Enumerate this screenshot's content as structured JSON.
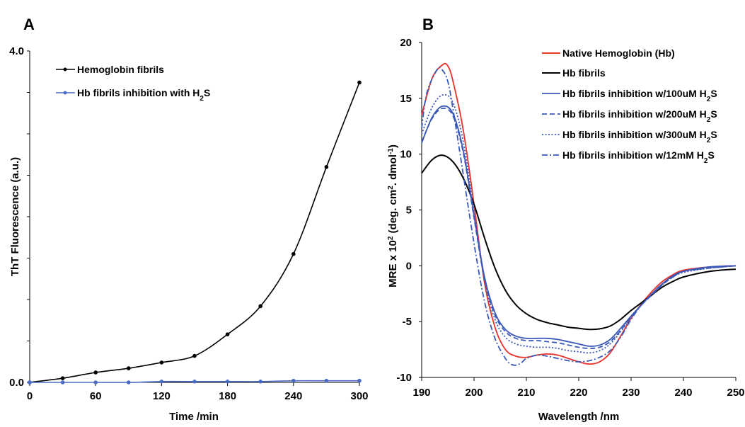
{
  "chart_data": [
    {
      "panel": "A",
      "type": "line",
      "xlabel": "Time /min",
      "ylabel": "ThT Fluorescence (a.u.)",
      "xlim": [
        0,
        300
      ],
      "ylim": [
        0,
        4.0
      ],
      "xticks": [
        "0",
        "60",
        "120",
        "180",
        "240",
        "300"
      ],
      "yticks": [
        "0.0",
        "4.0"
      ],
      "legend_position": "top-left",
      "series": [
        {
          "name": "Hemoglobin fibrils",
          "color": "#000000",
          "x": [
            0,
            30,
            60,
            90,
            120,
            150,
            180,
            210,
            240,
            270,
            300
          ],
          "y": [
            0.0,
            0.05,
            0.12,
            0.17,
            0.24,
            0.32,
            0.58,
            0.92,
            1.55,
            2.6,
            3.62
          ]
        },
        {
          "name": "Hb fibrils inhibition with H2S",
          "color": "#4a6cc4",
          "x": [
            0,
            30,
            60,
            90,
            120,
            150,
            180,
            210,
            240,
            270,
            300
          ],
          "y": [
            0.0,
            0.0,
            0.0,
            0.0,
            0.01,
            0.01,
            0.01,
            0.01,
            0.02,
            0.02,
            0.02
          ]
        }
      ]
    },
    {
      "panel": "B",
      "type": "line",
      "xlabel": "Wavelength /nm",
      "ylabel": "MRE x 10² (deg. cm². dmol⁻¹)",
      "xlim": [
        190,
        250
      ],
      "ylim": [
        -10,
        20
      ],
      "xticks": [
        "190",
        "200",
        "210",
        "220",
        "230",
        "240",
        "250"
      ],
      "yticks": [
        "-10",
        "-5",
        "0",
        "5",
        "10",
        "15",
        "20"
      ],
      "legend_position": "top-right",
      "series": [
        {
          "name": "Native Hemoglobin (Hb)",
          "color": "#e8322a",
          "style": "solid",
          "x": [
            190,
            192,
            194,
            195,
            196,
            198,
            200,
            202,
            204,
            206,
            208,
            210,
            212,
            214,
            216,
            218,
            220,
            222,
            224,
            226,
            228,
            230,
            232,
            234,
            236,
            238,
            240,
            245,
            250
          ],
          "y": [
            13.5,
            16.8,
            18.0,
            17.9,
            16.5,
            12.0,
            5.5,
            -1.5,
            -5.5,
            -7.5,
            -8.1,
            -8.2,
            -8.0,
            -7.9,
            -8.0,
            -8.3,
            -8.6,
            -8.8,
            -8.6,
            -7.8,
            -6.3,
            -4.7,
            -3.4,
            -2.3,
            -1.4,
            -0.8,
            -0.4,
            -0.1,
            0.0
          ]
        },
        {
          "name": "Hb fibrils",
          "color": "#000000",
          "style": "solid",
          "x": [
            190,
            192,
            194,
            196,
            198,
            200,
            202,
            204,
            206,
            208,
            210,
            212,
            214,
            216,
            218,
            220,
            222,
            224,
            226,
            228,
            230,
            232,
            234,
            236,
            238,
            240,
            245,
            250
          ],
          "y": [
            8.3,
            9.5,
            9.9,
            9.3,
            7.8,
            5.5,
            2.5,
            -0.2,
            -2.2,
            -3.5,
            -4.3,
            -4.8,
            -5.1,
            -5.3,
            -5.5,
            -5.6,
            -5.7,
            -5.65,
            -5.4,
            -4.8,
            -4.0,
            -3.3,
            -2.6,
            -1.9,
            -1.4,
            -1.0,
            -0.5,
            -0.3
          ]
        },
        {
          "name": "Hb fibrils inhibition w/100uM H2S",
          "color": "#3a58b8",
          "style": "solid",
          "x": [
            190,
            192,
            194,
            196,
            198,
            200,
            202,
            204,
            206,
            208,
            210,
            212,
            214,
            216,
            218,
            220,
            222,
            224,
            226,
            228,
            230,
            232,
            234,
            236,
            238,
            240,
            245,
            250
          ],
          "y": [
            11.0,
            13.3,
            14.3,
            13.6,
            10.2,
            4.5,
            -1.0,
            -4.2,
            -5.7,
            -6.3,
            -6.5,
            -6.5,
            -6.5,
            -6.6,
            -6.8,
            -7.0,
            -7.2,
            -7.1,
            -6.6,
            -5.6,
            -4.5,
            -3.5,
            -2.5,
            -1.6,
            -0.9,
            -0.5,
            -0.1,
            0.0
          ]
        },
        {
          "name": "Hb fibrils inhibition w/200uM H2S",
          "color": "#3a58b8",
          "style": "dashed",
          "x": [
            190,
            192,
            194,
            196,
            198,
            200,
            202,
            204,
            206,
            208,
            210,
            212,
            214,
            216,
            218,
            220,
            222,
            224,
            226,
            228,
            230,
            232,
            234,
            236,
            238,
            240,
            245,
            250
          ],
          "y": [
            11.1,
            13.2,
            14.1,
            13.4,
            10.0,
            4.3,
            -1.2,
            -4.4,
            -5.9,
            -6.5,
            -6.7,
            -6.7,
            -6.8,
            -6.9,
            -7.1,
            -7.3,
            -7.4,
            -7.3,
            -6.8,
            -5.8,
            -4.6,
            -3.5,
            -2.6,
            -1.7,
            -1.0,
            -0.5,
            -0.2,
            0.0
          ]
        },
        {
          "name": "Hb fibrils inhibition w/300uM H2S",
          "color": "#3a58b8",
          "style": "dotted",
          "x": [
            190,
            192,
            194,
            196,
            198,
            200,
            202,
            204,
            206,
            208,
            210,
            212,
            214,
            216,
            218,
            220,
            222,
            224,
            226,
            228,
            230,
            232,
            234,
            236,
            238,
            240,
            245,
            250
          ],
          "y": [
            11.8,
            14.2,
            15.3,
            14.6,
            11.0,
            4.8,
            -1.3,
            -4.8,
            -6.4,
            -7.0,
            -7.2,
            -7.3,
            -7.3,
            -7.4,
            -7.6,
            -7.7,
            -7.8,
            -7.6,
            -7.0,
            -5.9,
            -4.6,
            -3.5,
            -2.5,
            -1.7,
            -1.0,
            -0.6,
            -0.2,
            0.0
          ]
        },
        {
          "name": "Hb fibrils inhibition w/12mM H2S",
          "color": "#3a58b8",
          "style": "dashdot",
          "x": [
            190,
            191,
            193,
            194,
            195,
            196,
            198,
            200,
            202,
            204,
            206,
            207,
            208,
            209,
            210,
            212,
            214,
            216,
            218,
            220,
            222,
            224,
            226,
            228,
            230,
            232,
            234,
            236,
            238,
            240,
            245,
            250
          ],
          "y": [
            12.3,
            15.5,
            17.6,
            17.5,
            16.5,
            14.0,
            8.0,
            2.0,
            -3.2,
            -6.5,
            -8.3,
            -8.8,
            -8.9,
            -8.7,
            -8.3,
            -8.0,
            -8.1,
            -8.3,
            -8.5,
            -8.6,
            -8.5,
            -8.2,
            -7.6,
            -6.4,
            -4.8,
            -3.5,
            -2.5,
            -1.6,
            -1.0,
            -0.5,
            -0.2,
            0.0
          ]
        }
      ]
    }
  ]
}
